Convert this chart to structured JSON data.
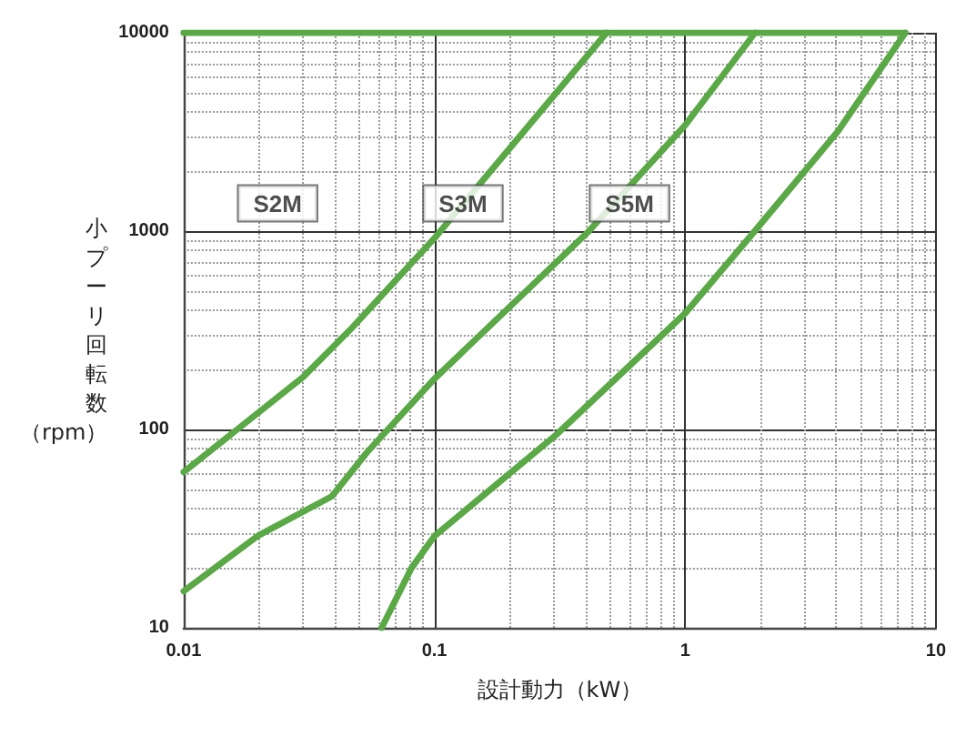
{
  "chart_data": {
    "type": "line",
    "xlabel": "設計動力（kW）",
    "ylabel": "小プーリ回転数（rpm）",
    "log": "xy",
    "grid": true,
    "marker": "none",
    "line_style": "solid",
    "xlim": [
      0.01,
      10
    ],
    "ylim": [
      10,
      10000
    ],
    "xticks": [
      0.01,
      0.1,
      1,
      10
    ],
    "yticks": [
      10,
      100,
      1000,
      10000
    ],
    "series": [
      {
        "color": "#5aa846",
        "x": [
          0.01,
          0.03,
          0.047,
          0.1,
          0.486
        ],
        "values": [
          61,
          184,
          326,
          920,
          10000
        ]
      },
      {
        "color": "#5aa846",
        "x": [
          0.01,
          0.0197,
          0.039,
          0.054,
          0.1,
          0.41,
          1.0,
          1.9
        ],
        "values": [
          15.3,
          29,
          46,
          77,
          180,
          990,
          3420,
          10000
        ]
      },
      {
        "color": "#5aa846",
        "x": [
          0.0616,
          0.081,
          0.1,
          0.306,
          1.0,
          1.92,
          4.07,
          7.55
        ],
        "values": [
          10,
          20,
          29,
          94,
          385,
          1020,
          3190,
          10000
        ]
      },
      {
        "color": "#5aa846",
        "x": [
          0.01,
          7.55
        ],
        "values": [
          10000,
          10000
        ]
      }
    ],
    "annotations": [
      {
        "text": "S2M",
        "x": 0.0237,
        "y": 1380
      },
      {
        "text": "S3M",
        "x": 0.13,
        "y": 1380
      },
      {
        "text": "S5M",
        "x": 0.6,
        "y": 1380
      }
    ]
  }
}
